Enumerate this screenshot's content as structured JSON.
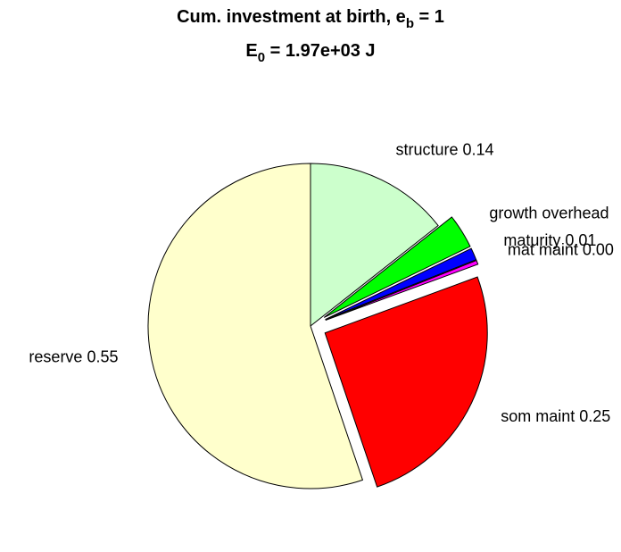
{
  "chart_data": {
    "type": "pie",
    "title": [
      "Cum. investment at birth, e",
      "b",
      " = 1"
    ],
    "subtitle": [
      "E",
      "0",
      " = 1.97e+03 J"
    ],
    "categories": [
      "structure",
      "growth overhead",
      "maturity",
      "mat maint",
      "som maint",
      "reserve"
    ],
    "values": [
      0.144,
      0.034,
      0.012,
      0.004,
      0.254,
      0.552
    ],
    "value_labels": [
      "0.14",
      null,
      "0.01",
      "0.00",
      "0.25",
      "0.55"
    ],
    "colors": [
      "#ccffcc",
      "#00ff00",
      "#0000ff",
      "#ff00ff",
      "#ff0000",
      "#ffffcc"
    ],
    "explode": [
      false,
      true,
      true,
      true,
      true,
      false
    ]
  }
}
